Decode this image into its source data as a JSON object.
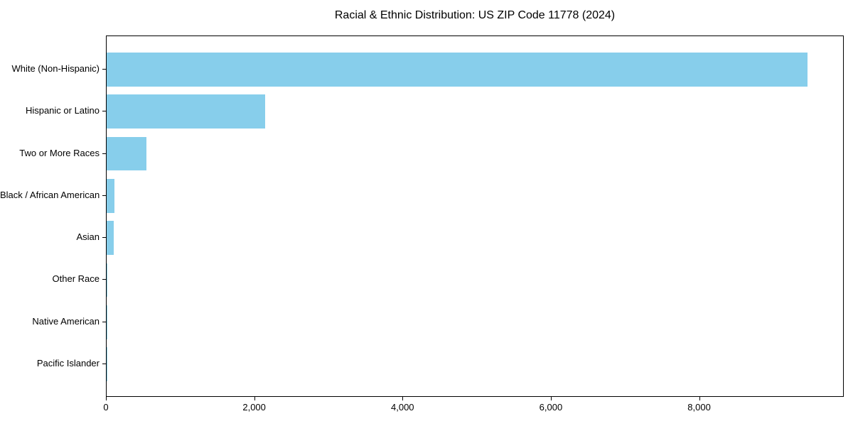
{
  "chart_data": {
    "type": "bar",
    "orientation": "horizontal",
    "title": "Racial & Ethnic Distribution: US ZIP Code 11778 (2024)",
    "categories": [
      "White (Non-Hispanic)",
      "Hispanic or Latino",
      "Two or More Races",
      "Black / African American",
      "Asian",
      "Other Race",
      "Native American",
      "Pacific Islander"
    ],
    "values": [
      9455,
      2140,
      540,
      110,
      100,
      12,
      5,
      2
    ],
    "xlabel": "",
    "ylabel": "",
    "xlim": [
      0,
      9950
    ],
    "x_ticks": [
      0,
      2000,
      4000,
      6000,
      8000
    ],
    "x_tick_labels": [
      "0",
      "2,000",
      "4,000",
      "6,000",
      "8,000"
    ],
    "bar_color": "#87CEEB",
    "background_color": "#FFFFFF",
    "axis_color": "#000000",
    "grid": false,
    "legend": null
  }
}
